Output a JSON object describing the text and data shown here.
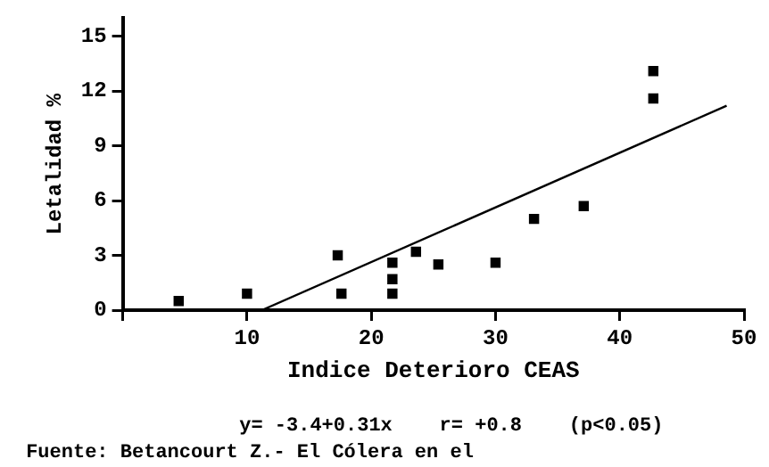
{
  "chart_data": {
    "type": "scatter",
    "xlabel": "Indice Deterioro CEAS",
    "ylabel": "Letalidad %",
    "annotations": [
      "y= -3.4+0.31x    r= +0.8    (p<0.05)",
      "Fuente: Betancourt Z.- El Cólera en el"
    ],
    "series": [
      {
        "color": "#000000",
        "marker": "square",
        "x": [
          4.5,
          10,
          17.3,
          17.6,
          21.7,
          21.7,
          21.7,
          23.6,
          25.4,
          30,
          33.1,
          37.1,
          42.7,
          42.7
        ],
        "values": [
          0.5,
          0.9,
          3.0,
          0.9,
          2.6,
          1.7,
          0.9,
          3.2,
          2.5,
          2.6,
          5.0,
          5.7,
          11.6,
          13.1
        ]
      },
      {
        "type": "line",
        "color": "#000000",
        "marker": "none",
        "line_style": "solid",
        "x": [
          11.2,
          48.6
        ],
        "values": [
          0,
          11.2
        ]
      }
    ],
    "xlim": [
      0,
      50
    ],
    "ylim": [
      0,
      16
    ],
    "xticks": [
      {
        "value": 0,
        "label": null
      },
      10,
      20,
      30,
      40,
      50
    ],
    "yticks": [
      0,
      3,
      6,
      9,
      12,
      15
    ],
    "grid": false,
    "legend": false
  }
}
